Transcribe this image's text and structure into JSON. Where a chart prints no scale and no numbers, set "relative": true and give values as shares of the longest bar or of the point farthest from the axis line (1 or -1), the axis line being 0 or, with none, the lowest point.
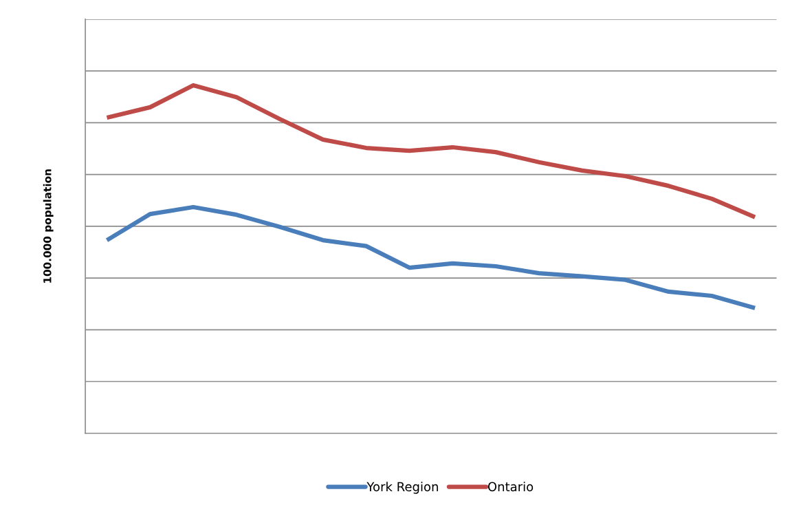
{
  "chart_data": {
    "type": "line",
    "ylabel": "100.000 population",
    "relative": true,
    "categories": [
      null,
      null,
      null,
      null,
      null,
      null,
      null,
      null,
      null,
      null,
      null,
      null,
      null,
      null,
      null,
      null
    ],
    "series": [
      {
        "name": "York Region",
        "color": "#4a7ebb",
        "values": [
          0.555,
          0.63,
          0.65,
          0.628,
          0.593,
          0.555,
          0.538,
          0.476,
          0.488,
          0.48,
          0.46,
          0.451,
          0.441,
          0.407,
          0.395,
          0.36
        ]
      },
      {
        "name": "Ontario",
        "color": "#be4b48",
        "values": [
          0.907,
          0.937,
          1,
          0.966,
          0.903,
          0.844,
          0.82,
          0.812,
          0.822,
          0.808,
          0.779,
          0.755,
          0.739,
          0.711,
          0.674,
          0.621
        ]
      }
    ],
    "grid": true,
    "legend": "bottom",
    "marker": "none",
    "line_style": "solid"
  }
}
